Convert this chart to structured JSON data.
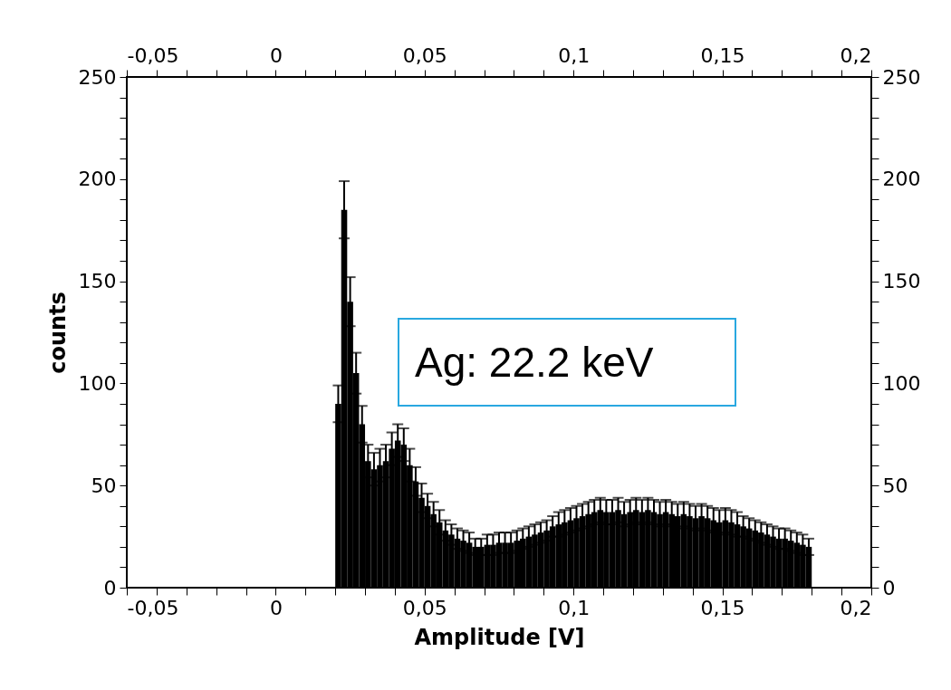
{
  "chart_data": {
    "type": "histogram",
    "xlabel": "Amplitude [V]",
    "ylabel": "counts",
    "annotations": [
      "Ag: 22.2 keV"
    ],
    "color": "#000000",
    "bins": [
      0.02,
      0.022,
      0.024,
      0.026,
      0.028,
      0.03,
      0.032,
      0.034,
      0.036,
      0.038,
      0.04,
      0.042,
      0.044,
      0.046,
      0.048,
      0.05,
      0.052,
      0.054,
      0.056,
      0.058,
      0.06,
      0.062,
      0.064,
      0.066,
      0.068,
      0.07,
      0.072,
      0.074,
      0.076,
      0.078,
      0.08,
      0.082,
      0.084,
      0.086,
      0.088,
      0.09,
      0.092,
      0.094,
      0.096,
      0.098,
      0.1,
      0.102,
      0.104,
      0.106,
      0.108,
      0.11,
      0.112,
      0.114,
      0.116,
      0.118,
      0.12,
      0.122,
      0.124,
      0.126,
      0.128,
      0.13,
      0.132,
      0.134,
      0.136,
      0.138,
      0.14,
      0.142,
      0.144,
      0.146,
      0.148,
      0.15,
      0.152,
      0.154,
      0.156,
      0.158,
      0.16,
      0.162,
      0.164,
      0.166,
      0.168,
      0.17,
      0.172,
      0.174,
      0.176,
      0.178,
      0.18
    ],
    "values": [
      90,
      185,
      140,
      105,
      80,
      62,
      58,
      60,
      62,
      68,
      72,
      70,
      60,
      52,
      44,
      40,
      36,
      32,
      28,
      26,
      24,
      23,
      22,
      20,
      20,
      21,
      21,
      22,
      22,
      22,
      23,
      24,
      25,
      26,
      27,
      28,
      30,
      31,
      32,
      33,
      34,
      35,
      36,
      37,
      38,
      37,
      37,
      38,
      36,
      37,
      38,
      37,
      38,
      37,
      36,
      37,
      36,
      35,
      36,
      35,
      34,
      35,
      34,
      33,
      32,
      33,
      32,
      31,
      30,
      29,
      28,
      27,
      26,
      25,
      24,
      24,
      23,
      22,
      21,
      20
    ],
    "errors": [
      9,
      14,
      12,
      10,
      9,
      8,
      8,
      8,
      8,
      8,
      8,
      8,
      8,
      7,
      7,
      6,
      6,
      6,
      5,
      5,
      5,
      5,
      5,
      4,
      4,
      5,
      5,
      5,
      5,
      5,
      5,
      5,
      5,
      5,
      5,
      5,
      5,
      6,
      6,
      6,
      6,
      6,
      6,
      6,
      6,
      6,
      6,
      6,
      6,
      6,
      6,
      6,
      6,
      6,
      6,
      6,
      6,
      6,
      6,
      6,
      6,
      6,
      6,
      6,
      6,
      6,
      6,
      6,
      5,
      5,
      5,
      5,
      5,
      5,
      5,
      5,
      5,
      5,
      5,
      4
    ],
    "xlim": [
      -0.05,
      0.2
    ],
    "xticks": [
      {
        "value": -0.05,
        "label": "-0,05"
      },
      {
        "value": -0.04,
        "label": null
      },
      {
        "value": -0.03,
        "label": null
      },
      {
        "value": -0.02,
        "label": null
      },
      {
        "value": -0.01,
        "label": null
      },
      0,
      {
        "value": 0.01,
        "label": null
      },
      {
        "value": 0.02,
        "label": null
      },
      {
        "value": 0.03,
        "label": null
      },
      {
        "value": 0.04,
        "label": null
      },
      {
        "value": 0.05,
        "label": "0,05"
      },
      {
        "value": 0.06,
        "label": null
      },
      {
        "value": 0.07,
        "label": null
      },
      {
        "value": 0.08,
        "label": null
      },
      {
        "value": 0.09,
        "label": null
      },
      {
        "value": 0.1,
        "label": "0,1"
      },
      {
        "value": 0.11,
        "label": null
      },
      {
        "value": 0.12,
        "label": null
      },
      {
        "value": 0.13,
        "label": null
      },
      {
        "value": 0.14,
        "label": null
      },
      {
        "value": 0.15,
        "label": "0,15"
      },
      {
        "value": 0.16,
        "label": null
      },
      {
        "value": 0.17,
        "label": null
      },
      {
        "value": 0.18,
        "label": null
      },
      {
        "value": 0.19,
        "label": null
      },
      {
        "value": 0.2,
        "label": "0,2"
      }
    ],
    "x2lim": [
      -0.05,
      0.2
    ],
    "x2ticks": [
      {
        "value": -0.05,
        "label": "-0,05"
      },
      {
        "value": -0.04,
        "label": null
      },
      {
        "value": -0.03,
        "label": null
      },
      {
        "value": -0.02,
        "label": null
      },
      {
        "value": -0.01,
        "label": null
      },
      0,
      {
        "value": 0.01,
        "label": null
      },
      {
        "value": 0.02,
        "label": null
      },
      {
        "value": 0.03,
        "label": null
      },
      {
        "value": 0.04,
        "label": null
      },
      {
        "value": 0.05,
        "label": "0,05"
      },
      {
        "value": 0.06,
        "label": null
      },
      {
        "value": 0.07,
        "label": null
      },
      {
        "value": 0.08,
        "label": null
      },
      {
        "value": 0.09,
        "label": null
      },
      {
        "value": 0.1,
        "label": "0,1"
      },
      {
        "value": 0.11,
        "label": null
      },
      {
        "value": 0.12,
        "label": null
      },
      {
        "value": 0.13,
        "label": null
      },
      {
        "value": 0.14,
        "label": null
      },
      {
        "value": 0.15,
        "label": "0,15"
      },
      {
        "value": 0.16,
        "label": null
      },
      {
        "value": 0.17,
        "label": null
      },
      {
        "value": 0.18,
        "label": null
      },
      {
        "value": 0.19,
        "label": null
      },
      {
        "value": 0.2,
        "label": "0,2"
      }
    ],
    "ylim": [
      0,
      250
    ],
    "yticks": [
      0,
      {
        "value": 10,
        "label": null
      },
      {
        "value": 20,
        "label": null
      },
      {
        "value": 30,
        "label": null
      },
      {
        "value": 40,
        "label": null
      },
      50,
      {
        "value": 60,
        "label": null
      },
      {
        "value": 70,
        "label": null
      },
      {
        "value": 80,
        "label": null
      },
      {
        "value": 90,
        "label": null
      },
      100,
      {
        "value": 110,
        "label": null
      },
      {
        "value": 120,
        "label": null
      },
      {
        "value": 130,
        "label": null
      },
      {
        "value": 140,
        "label": null
      },
      150,
      {
        "value": 160,
        "label": null
      },
      {
        "value": 170,
        "label": null
      },
      {
        "value": 180,
        "label": null
      },
      {
        "value": 190,
        "label": null
      },
      200,
      {
        "value": 210,
        "label": null
      },
      {
        "value": 220,
        "label": null
      },
      {
        "value": 230,
        "label": null
      },
      {
        "value": 240,
        "label": null
      },
      250
    ],
    "y2lim": [
      0,
      250
    ],
    "y2ticks": [
      0,
      {
        "value": 10,
        "label": null
      },
      {
        "value": 20,
        "label": null
      },
      {
        "value": 30,
        "label": null
      },
      {
        "value": 40,
        "label": null
      },
      50,
      {
        "value": 60,
        "label": null
      },
      {
        "value": 70,
        "label": null
      },
      {
        "value": 80,
        "label": null
      },
      {
        "value": 90,
        "label": null
      },
      100,
      {
        "value": 110,
        "label": null
      },
      {
        "value": 120,
        "label": null
      },
      {
        "value": 130,
        "label": null
      },
      {
        "value": 140,
        "label": null
      },
      150,
      {
        "value": 160,
        "label": null
      },
      {
        "value": 170,
        "label": null
      },
      {
        "value": 180,
        "label": null
      },
      {
        "value": 190,
        "label": null
      },
      200,
      {
        "value": 210,
        "label": null
      },
      {
        "value": 220,
        "label": null
      },
      {
        "value": 230,
        "label": null
      },
      {
        "value": 240,
        "label": null
      },
      250
    ],
    "grid": false
  }
}
